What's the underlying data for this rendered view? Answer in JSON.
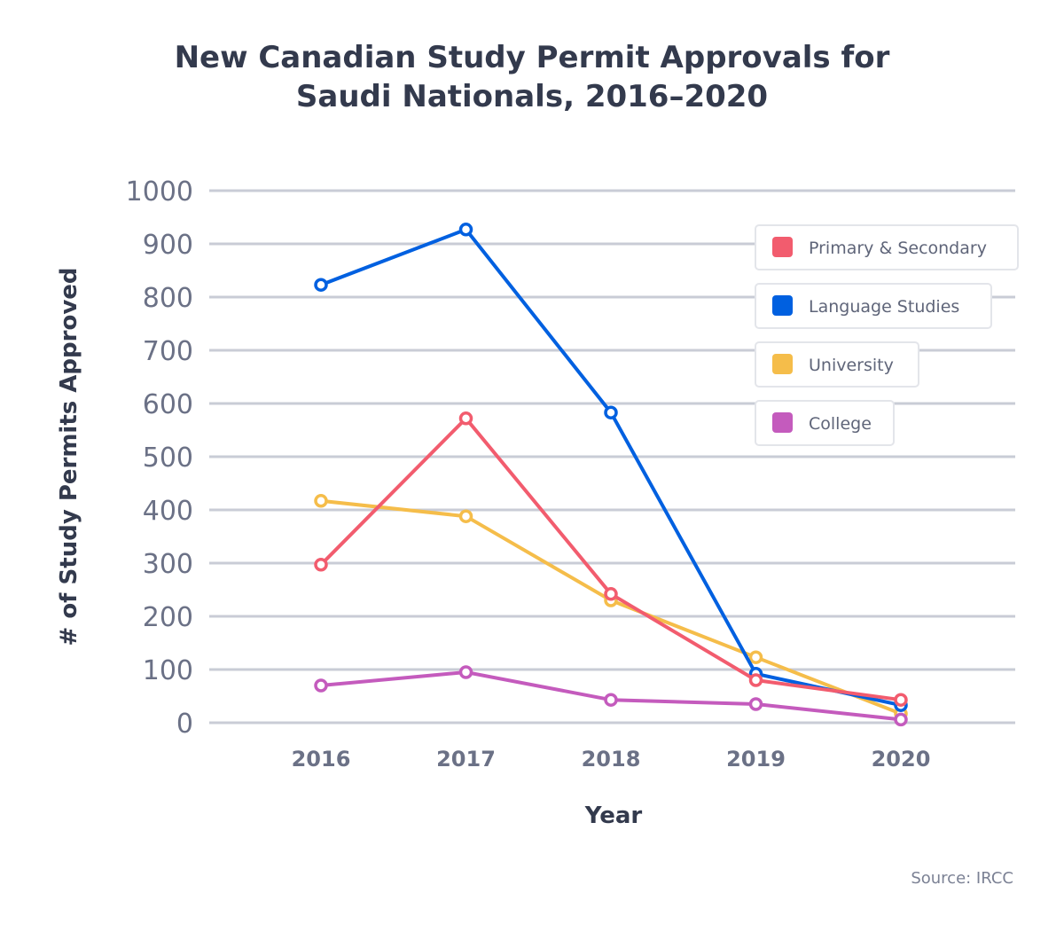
{
  "chart_data": {
    "type": "line",
    "title_lines": [
      "New Canadian Study Permit Approvals for",
      "Saudi Nationals, 2016–2020"
    ],
    "xlabel": "Year",
    "ylabel": "# of Study Permits Approved",
    "x": [
      "2016",
      "2017",
      "2018",
      "2019",
      "2020"
    ],
    "ylim": [
      0,
      1000
    ],
    "yticks": [
      0,
      100,
      200,
      300,
      400,
      500,
      600,
      700,
      800,
      900,
      1000
    ],
    "grid": true,
    "legend_position": "top-right",
    "series": [
      {
        "name": "Primary & Secondary",
        "color": "#f25c6e",
        "values": [
          297,
          572,
          242,
          80,
          43
        ]
      },
      {
        "name": "Language Studies",
        "color": "#0060e0",
        "values": [
          823,
          927,
          583,
          92,
          33
        ]
      },
      {
        "name": "University",
        "color": "#f5bd4a",
        "values": [
          417,
          388,
          230,
          123,
          17
        ]
      },
      {
        "name": "College",
        "color": "#c45bbd",
        "values": [
          70,
          95,
          43,
          35,
          6
        ]
      }
    ],
    "draw_order": [
      2,
      1,
      0,
      3
    ],
    "source": "Source: IRCC"
  }
}
